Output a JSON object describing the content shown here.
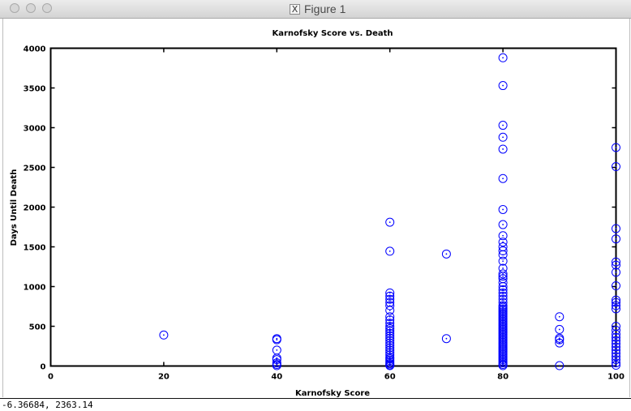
{
  "window": {
    "title": "Figure 1",
    "app_icon": "x11-icon",
    "buttons": [
      "close",
      "minimize",
      "zoom"
    ]
  },
  "status": {
    "coordinates": "-6.36684,  2363.14"
  },
  "colors": {
    "marker": "#0000ff",
    "axes": "#000000",
    "background": "#ffffff"
  },
  "chart_data": {
    "type": "scatter",
    "title": "Karnofsky Score vs. Death",
    "xlabel": "Karnofsky Score",
    "ylabel": "Days Until Death",
    "xlim": [
      0,
      100
    ],
    "ylim": [
      0,
      4000
    ],
    "xticks": [
      0,
      20,
      40,
      60,
      80,
      100
    ],
    "yticks": [
      0,
      500,
      1000,
      1500,
      2000,
      2500,
      3000,
      3500,
      4000
    ],
    "marker": "circle-dot",
    "grid": false,
    "legend": "none",
    "points": [
      [
        20,
        390
      ],
      [
        40,
        5
      ],
      [
        40,
        20
      ],
      [
        40,
        40
      ],
      [
        40,
        80
      ],
      [
        40,
        100
      ],
      [
        40,
        200
      ],
      [
        40,
        330
      ],
      [
        40,
        345
      ],
      [
        60,
        5
      ],
      [
        60,
        15
      ],
      [
        60,
        30
      ],
      [
        60,
        50
      ],
      [
        60,
        70
      ],
      [
        60,
        90
      ],
      [
        60,
        110
      ],
      [
        60,
        140
      ],
      [
        60,
        170
      ],
      [
        60,
        200
      ],
      [
        60,
        230
      ],
      [
        60,
        260
      ],
      [
        60,
        290
      ],
      [
        60,
        320
      ],
      [
        60,
        350
      ],
      [
        60,
        380
      ],
      [
        60,
        410
      ],
      [
        60,
        440
      ],
      [
        60,
        470
      ],
      [
        60,
        500
      ],
      [
        60,
        540
      ],
      [
        60,
        580
      ],
      [
        60,
        620
      ],
      [
        60,
        700
      ],
      [
        60,
        760
      ],
      [
        60,
        800
      ],
      [
        60,
        840
      ],
      [
        60,
        880
      ],
      [
        60,
        920
      ],
      [
        60,
        1445
      ],
      [
        60,
        1810
      ],
      [
        70,
        345
      ],
      [
        70,
        1410
      ],
      [
        80,
        5
      ],
      [
        80,
        20
      ],
      [
        80,
        40
      ],
      [
        80,
        60
      ],
      [
        80,
        80
      ],
      [
        80,
        100
      ],
      [
        80,
        120
      ],
      [
        80,
        140
      ],
      [
        80,
        160
      ],
      [
        80,
        180
      ],
      [
        80,
        200
      ],
      [
        80,
        220
      ],
      [
        80,
        240
      ],
      [
        80,
        260
      ],
      [
        80,
        280
      ],
      [
        80,
        300
      ],
      [
        80,
        320
      ],
      [
        80,
        340
      ],
      [
        80,
        360
      ],
      [
        80,
        380
      ],
      [
        80,
        400
      ],
      [
        80,
        420
      ],
      [
        80,
        440
      ],
      [
        80,
        460
      ],
      [
        80,
        480
      ],
      [
        80,
        500
      ],
      [
        80,
        520
      ],
      [
        80,
        540
      ],
      [
        80,
        560
      ],
      [
        80,
        580
      ],
      [
        80,
        600
      ],
      [
        80,
        620
      ],
      [
        80,
        640
      ],
      [
        80,
        660
      ],
      [
        80,
        680
      ],
      [
        80,
        700
      ],
      [
        80,
        720
      ],
      [
        80,
        740
      ],
      [
        80,
        760
      ],
      [
        80,
        800
      ],
      [
        80,
        840
      ],
      [
        80,
        880
      ],
      [
        80,
        920
      ],
      [
        80,
        960
      ],
      [
        80,
        1000
      ],
      [
        80,
        1050
      ],
      [
        80,
        1100
      ],
      [
        80,
        1130
      ],
      [
        80,
        1160
      ],
      [
        80,
        1230
      ],
      [
        80,
        1320
      ],
      [
        80,
        1400
      ],
      [
        80,
        1450
      ],
      [
        80,
        1500
      ],
      [
        80,
        1560
      ],
      [
        80,
        1640
      ],
      [
        80,
        1780
      ],
      [
        80,
        1970
      ],
      [
        80,
        2360
      ],
      [
        80,
        2730
      ],
      [
        80,
        2880
      ],
      [
        80,
        3030
      ],
      [
        80,
        3530
      ],
      [
        80,
        3880
      ],
      [
        90,
        5
      ],
      [
        90,
        290
      ],
      [
        90,
        330
      ],
      [
        90,
        350
      ],
      [
        90,
        460
      ],
      [
        90,
        620
      ],
      [
        100,
        10
      ],
      [
        100,
        40
      ],
      [
        100,
        80
      ],
      [
        100,
        120
      ],
      [
        100,
        160
      ],
      [
        100,
        200
      ],
      [
        100,
        240
      ],
      [
        100,
        280
      ],
      [
        100,
        320
      ],
      [
        100,
        360
      ],
      [
        100,
        400
      ],
      [
        100,
        450
      ],
      [
        100,
        500
      ],
      [
        100,
        720
      ],
      [
        100,
        760
      ],
      [
        100,
        800
      ],
      [
        100,
        830
      ],
      [
        100,
        1010
      ],
      [
        100,
        1180
      ],
      [
        100,
        1270
      ],
      [
        100,
        1310
      ],
      [
        100,
        1600
      ],
      [
        100,
        1730
      ],
      [
        100,
        2510
      ],
      [
        100,
        2750
      ]
    ]
  }
}
